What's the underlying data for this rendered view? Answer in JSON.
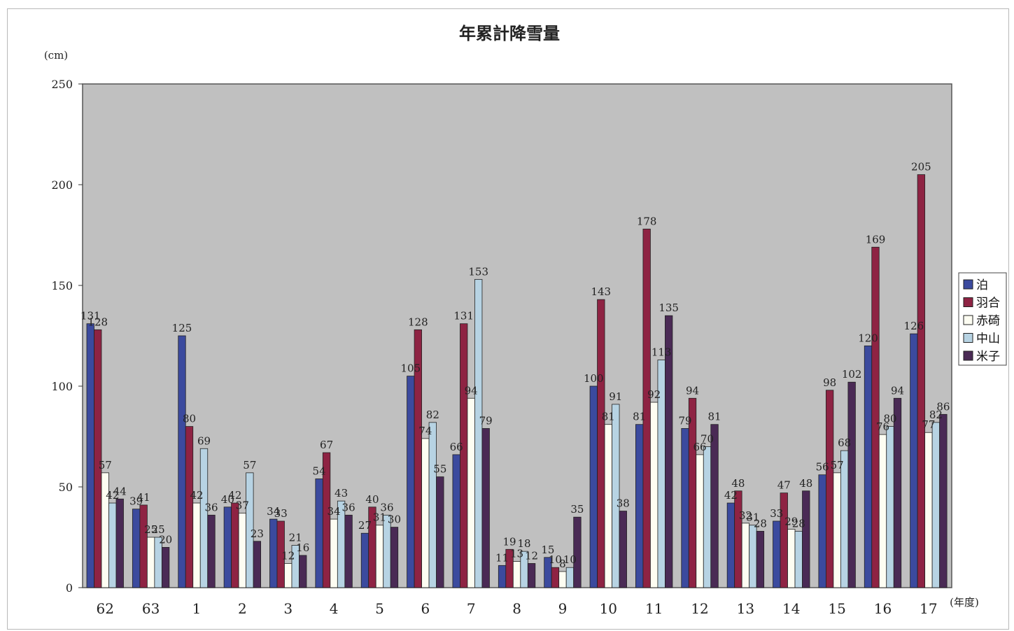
{
  "chart_data": {
    "type": "bar",
    "title": "年累計降雪量",
    "ylabel": "(cm)",
    "xlabel": "(年度)",
    "ylim": [
      0,
      250
    ],
    "yticks": [
      0,
      50,
      100,
      150,
      200,
      250
    ],
    "grid": false,
    "legend_position": "right",
    "plot_background": "#c0c0c0",
    "categories": [
      "62",
      "63",
      "1",
      "2",
      "3",
      "4",
      "5",
      "6",
      "7",
      "8",
      "9",
      "10",
      "11",
      "12",
      "13",
      "14",
      "15",
      "16",
      "17"
    ],
    "series": [
      {
        "name": "泊",
        "color": "#3b4a9e",
        "values": [
          131,
          39,
          125,
          40,
          34,
          54,
          27,
          105,
          66,
          11,
          15,
          100,
          81,
          79,
          42,
          33,
          56,
          120,
          126
        ]
      },
      {
        "name": "羽合",
        "color": "#8e2343",
        "values": [
          128,
          41,
          80,
          42,
          33,
          67,
          40,
          128,
          131,
          19,
          10,
          143,
          178,
          94,
          48,
          47,
          98,
          169,
          205
        ]
      },
      {
        "name": "赤碕",
        "color": "#fdfdf2",
        "values": [
          57,
          25,
          42,
          37,
          12,
          34,
          31,
          74,
          94,
          13,
          8,
          81,
          92,
          66,
          32,
          29,
          57,
          76,
          77
        ]
      },
      {
        "name": "中山",
        "color": "#b7d3e3",
        "values": [
          42,
          25,
          69,
          57,
          21,
          43,
          36,
          82,
          153,
          18,
          10,
          91,
          113,
          70,
          31,
          28,
          68,
          80,
          82
        ]
      },
      {
        "name": "米子",
        "color": "#4a2a55",
        "values": [
          44,
          20,
          36,
          23,
          16,
          36,
          30,
          55,
          79,
          12,
          35,
          38,
          135,
          81,
          28,
          48,
          102,
          94,
          86
        ]
      }
    ]
  }
}
